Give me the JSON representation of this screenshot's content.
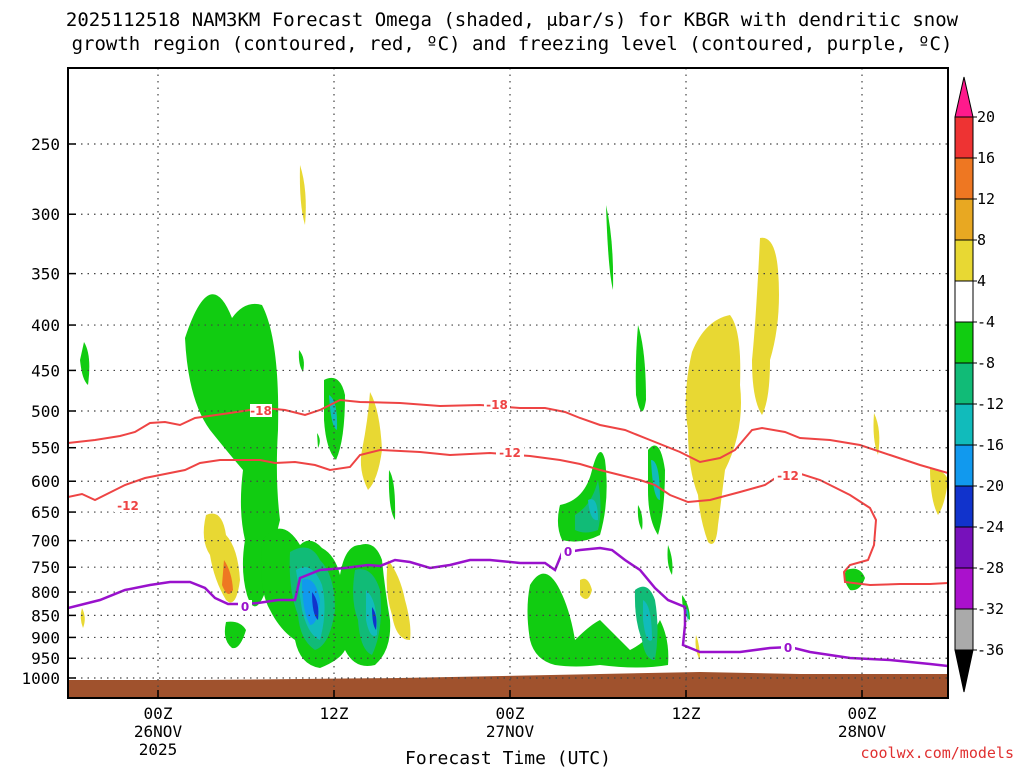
{
  "chart_data": {
    "type": "time-height contour",
    "title_line1": "2025112518 NAM3KM Forecast Omega (shaded, μbar/s) for KBGR with dendritic snow",
    "title_line2": "growth region (contoured, red, ºC) and freezing level (contoured, purple, ºC)",
    "xlabel": "Forecast Time (UTC)",
    "credit": "coolwx.com/models",
    "x_ticks": [
      {
        "label": "00Z",
        "sub1": "26NOV",
        "sub2": "2025",
        "hour": 6
      },
      {
        "label": "12Z",
        "sub1": "",
        "sub2": "",
        "hour": 18
      },
      {
        "label": "00Z",
        "sub1": "27NOV",
        "sub2": "",
        "hour": 30
      },
      {
        "label": "12Z",
        "sub1": "",
        "sub2": "",
        "hour": 42
      },
      {
        "label": "00Z",
        "sub1": "28NOV",
        "sub2": "",
        "hour": 54
      }
    ],
    "x_range_hours": [
      0,
      60
    ],
    "y_ticks": [
      "250",
      "300",
      "350",
      "400",
      "450",
      "500",
      "550",
      "600",
      "650",
      "700",
      "750",
      "800",
      "850",
      "900",
      "950",
      "1000"
    ],
    "y_range_mb": [
      1000,
      200
    ],
    "colorbar": {
      "labels": [
        "20",
        "16",
        "12",
        "8",
        "4",
        "-4",
        "-8",
        "-12",
        "-16",
        "-20",
        "-24",
        "-28",
        "-32",
        "-36"
      ],
      "colors": [
        "#ff1a8c",
        "#ee3333",
        "#ee7722",
        "#e8a822",
        "#e8d833",
        "#ffffff",
        "#11cc11",
        "#11bb77",
        "#11bbbb",
        "#1199ee",
        "#1133cc",
        "#7711bb",
        "#aa11cc",
        "#aaaaaa",
        "#000000"
      ]
    },
    "contour_labels": {
      "dgz_minus18": "-18",
      "dgz_minus12": "-12",
      "freezing": "0"
    }
  }
}
